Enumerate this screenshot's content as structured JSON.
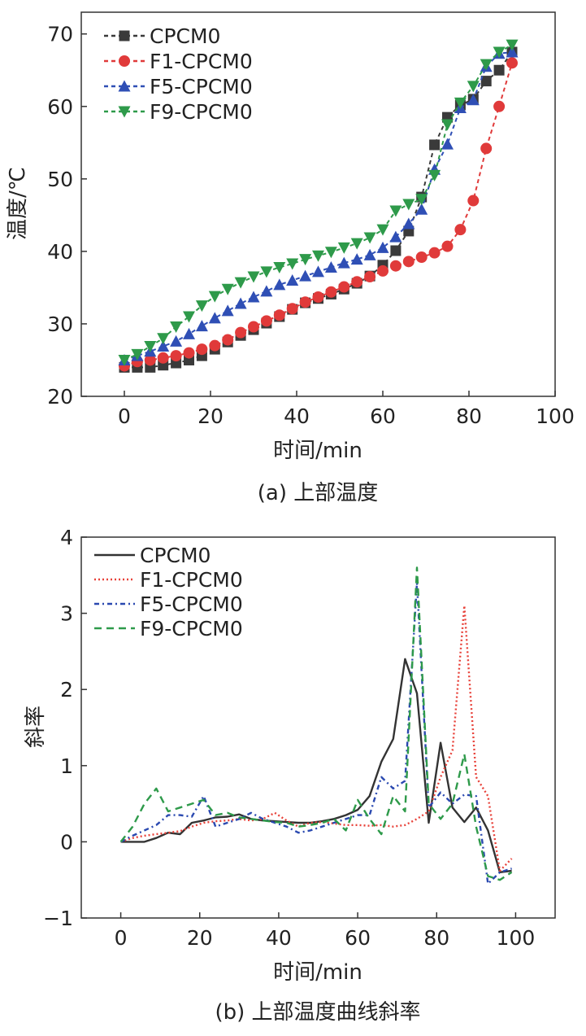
{
  "chart_data": [
    {
      "type": "line",
      "caption": "(a) 上部温度",
      "xlabel": "时间/min",
      "ylabel": "温度/℃",
      "xlim": [
        -10,
        100
      ],
      "ylim": [
        20,
        73
      ],
      "xticks": [
        0,
        20,
        40,
        60,
        80,
        100
      ],
      "yticks": [
        20,
        30,
        40,
        50,
        60,
        70
      ],
      "xtick_labels": [
        "0",
        "20",
        "40",
        "60",
        "80",
        "100"
      ],
      "ytick_labels": [
        "20",
        "30",
        "40",
        "50",
        "60",
        "70"
      ],
      "grid": false,
      "legend": "top-left",
      "series": [
        {
          "name": "CPCM0",
          "color": "#3a3a3a",
          "marker": "square",
          "x": [
            0,
            3,
            6,
            9,
            12,
            15,
            18,
            21,
            24,
            27,
            30,
            33,
            36,
            39,
            42,
            45,
            48,
            51,
            54,
            57,
            60,
            63,
            66,
            69,
            72,
            75,
            78,
            81,
            84,
            87,
            90
          ],
          "y": [
            24,
            24,
            24,
            24.3,
            24.6,
            25,
            25.6,
            26.5,
            27.5,
            28.4,
            29.2,
            30.1,
            31,
            32,
            32.9,
            33.5,
            34.1,
            34.8,
            35.6,
            36.6,
            38.1,
            40.1,
            42.8,
            47.5,
            54.7,
            58.5,
            60.2,
            61,
            63.5,
            65,
            67.5
          ]
        },
        {
          "name": "F1-CPCM0",
          "color": "#e03a3a",
          "marker": "circle",
          "x": [
            0,
            3,
            6,
            9,
            12,
            15,
            18,
            21,
            24,
            27,
            30,
            33,
            36,
            39,
            42,
            45,
            48,
            51,
            54,
            57,
            60,
            63,
            66,
            69,
            72,
            75,
            78,
            81,
            84,
            87,
            90
          ],
          "y": [
            24.2,
            24.8,
            25,
            25.3,
            25.6,
            26,
            26.5,
            27,
            27.8,
            28.8,
            29.6,
            30.4,
            31.2,
            32.1,
            33,
            33.7,
            34.4,
            35.1,
            35.8,
            36.5,
            37.3,
            38,
            38.6,
            39.2,
            39.8,
            40.7,
            43,
            47,
            54.2,
            60,
            66
          ]
        },
        {
          "name": "F5-CPCM0",
          "color": "#2f4fb5",
          "marker": "triangle-up",
          "x": [
            0,
            3,
            6,
            9,
            12,
            15,
            18,
            21,
            24,
            27,
            30,
            33,
            36,
            39,
            42,
            45,
            48,
            51,
            54,
            57,
            60,
            63,
            66,
            69,
            72,
            75,
            78,
            81,
            84,
            87,
            90
          ],
          "y": [
            25,
            25.6,
            26.2,
            26.9,
            27.6,
            28.6,
            29.7,
            30.8,
            31.8,
            32.8,
            33.7,
            34.5,
            35.4,
            36,
            36.6,
            37.2,
            37.8,
            38.4,
            38.9,
            39.5,
            40.5,
            42,
            43.8,
            45.8,
            51.3,
            54.8,
            59.8,
            60.9,
            65.5,
            67.3,
            67.5
          ]
        },
        {
          "name": "F9-CPCM0",
          "color": "#2e9a4a",
          "marker": "triangle-down",
          "x": [
            0,
            3,
            6,
            9,
            12,
            15,
            18,
            21,
            24,
            27,
            30,
            33,
            36,
            39,
            42,
            45,
            48,
            51,
            54,
            57,
            60,
            63,
            66,
            69,
            72,
            75,
            78,
            81,
            84,
            87,
            90
          ],
          "y": [
            25,
            25.8,
            26.9,
            28,
            29.6,
            31,
            32.5,
            33.8,
            34.8,
            35.7,
            36.5,
            37.2,
            37.8,
            38.3,
            38.9,
            39.4,
            39.9,
            40.5,
            41.1,
            41.9,
            43,
            45.6,
            46.5,
            47.2,
            50.5,
            57.5,
            60.5,
            62.8,
            65.8,
            67.5,
            68.5
          ]
        }
      ]
    },
    {
      "type": "line",
      "caption": "(b) 上部温度曲线斜率",
      "xlabel": "时间/min",
      "ylabel": "斜率",
      "xlim": [
        -10,
        110
      ],
      "ylim": [
        -1,
        4
      ],
      "xticks": [
        0,
        20,
        40,
        60,
        80,
        100
      ],
      "yticks": [
        -1,
        0,
        1,
        2,
        3,
        4
      ],
      "xtick_labels": [
        "0",
        "20",
        "40",
        "60",
        "80",
        "100"
      ],
      "ytick_labels": [
        "−1",
        "0",
        "1",
        "2",
        "3",
        "4"
      ],
      "grid": false,
      "legend": "top-left",
      "series": [
        {
          "name": "CPCM0",
          "color": "#333333",
          "style": "solid",
          "x": [
            0,
            3,
            6,
            9,
            12,
            15,
            18,
            21,
            24,
            27,
            30,
            33,
            36,
            39,
            42,
            45,
            48,
            51,
            54,
            57,
            60,
            63,
            66,
            69,
            72,
            75,
            78,
            81,
            84,
            87,
            90,
            93,
            96,
            99
          ],
          "y": [
            0,
            0,
            0,
            0.05,
            0.12,
            0.1,
            0.25,
            0.28,
            0.32,
            0.33,
            0.36,
            0.3,
            0.28,
            0.27,
            0.26,
            0.25,
            0.25,
            0.27,
            0.3,
            0.35,
            0.42,
            0.6,
            1.05,
            1.35,
            2.4,
            1.95,
            0.25,
            1.3,
            0.45,
            0.26,
            0.45,
            0.15,
            -0.4,
            -0.38
          ]
        },
        {
          "name": "F1-CPCM0",
          "color": "#e8423a",
          "style": "dotted",
          "x": [
            0,
            3,
            6,
            9,
            12,
            15,
            18,
            21,
            24,
            27,
            30,
            33,
            36,
            39,
            42,
            45,
            48,
            51,
            54,
            57,
            60,
            63,
            66,
            69,
            72,
            75,
            78,
            81,
            84,
            87,
            90,
            93,
            96,
            99
          ],
          "y": [
            0,
            0.05,
            0.08,
            0.1,
            0.12,
            0.14,
            0.2,
            0.25,
            0.27,
            0.28,
            0.3,
            0.28,
            0.3,
            0.38,
            0.28,
            0.2,
            0.25,
            0.26,
            0.24,
            0.22,
            0.22,
            0.21,
            0.22,
            0.2,
            0.22,
            0.3,
            0.4,
            0.85,
            1.2,
            3.1,
            0.85,
            0.6,
            -0.38,
            -0.22
          ]
        },
        {
          "name": "F5-CPCM0",
          "color": "#2a49b0",
          "style": "dash-dot",
          "x": [
            0,
            3,
            6,
            9,
            12,
            15,
            18,
            21,
            24,
            27,
            30,
            33,
            36,
            39,
            42,
            45,
            48,
            51,
            54,
            57,
            60,
            63,
            66,
            69,
            72,
            75,
            78,
            81,
            84,
            87,
            90,
            93,
            96,
            99
          ],
          "y": [
            0,
            0.08,
            0.15,
            0.22,
            0.35,
            0.35,
            0.33,
            0.6,
            0.2,
            0.25,
            0.3,
            0.38,
            0.3,
            0.25,
            0.2,
            0.12,
            0.15,
            0.2,
            0.25,
            0.3,
            0.35,
            0.35,
            0.85,
            0.7,
            0.8,
            3.4,
            0.45,
            0.65,
            0.5,
            0.62,
            0.6,
            -0.55,
            -0.4,
            -0.35
          ]
        },
        {
          "name": "F9-CPCM0",
          "color": "#2e9a4a",
          "style": "dashed",
          "x": [
            0,
            3,
            6,
            9,
            12,
            15,
            18,
            21,
            24,
            27,
            30,
            33,
            36,
            39,
            42,
            45,
            48,
            51,
            54,
            57,
            60,
            63,
            66,
            69,
            72,
            75,
            78,
            81,
            84,
            87,
            90,
            93,
            96,
            99
          ],
          "y": [
            0,
            0.2,
            0.5,
            0.7,
            0.4,
            0.45,
            0.5,
            0.55,
            0.35,
            0.38,
            0.32,
            0.3,
            0.28,
            0.26,
            0.25,
            0.2,
            0.22,
            0.25,
            0.3,
            0.15,
            0.55,
            0.3,
            0.1,
            0.6,
            0.4,
            3.6,
            0.5,
            0.3,
            0.5,
            1.15,
            0.2,
            -0.45,
            -0.5,
            -0.4
          ]
        }
      ]
    }
  ]
}
